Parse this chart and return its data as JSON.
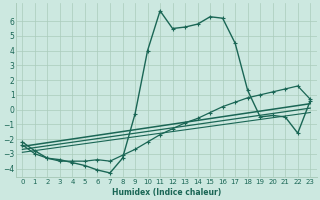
{
  "bg_color": "#cce8e0",
  "grid_color": "#aaccbb",
  "line_color": "#1a6655",
  "xlabel": "Humidex (Indice chaleur)",
  "xlim": [
    -0.5,
    23.5
  ],
  "ylim": [
    -4.6,
    7.2
  ],
  "yticks": [
    -4,
    -3,
    -2,
    -1,
    0,
    1,
    2,
    3,
    4,
    5,
    6
  ],
  "xticks": [
    0,
    1,
    2,
    3,
    4,
    5,
    6,
    7,
    8,
    9,
    10,
    11,
    12,
    13,
    14,
    15,
    16,
    17,
    18,
    19,
    20,
    21,
    22,
    23
  ],
  "series_marked": [
    {
      "x": [
        0,
        1,
        2,
        3,
        4,
        5,
        6,
        7,
        8,
        9,
        10,
        11,
        12,
        13,
        14,
        15,
        16,
        17,
        18,
        19,
        20,
        21,
        22,
        23
      ],
      "y": [
        -2.2,
        -2.8,
        -3.3,
        -3.4,
        -3.6,
        -3.8,
        -4.1,
        -4.3,
        -3.3,
        -0.3,
        4.0,
        6.7,
        5.5,
        5.6,
        5.8,
        6.3,
        6.2,
        4.5,
        1.3,
        -0.5,
        -0.4,
        -0.5,
        -1.6,
        0.6
      ],
      "linewidth": 1.0
    },
    {
      "x": [
        0,
        1,
        2,
        3,
        4,
        5,
        6,
        7,
        8,
        9,
        10,
        11,
        12,
        13,
        14,
        15,
        16,
        17,
        18,
        19,
        20,
        21,
        22,
        23
      ],
      "y": [
        -2.4,
        -3.0,
        -3.3,
        -3.5,
        -3.5,
        -3.5,
        -3.4,
        -3.5,
        -3.1,
        -2.7,
        -2.2,
        -1.7,
        -1.3,
        -0.9,
        -0.6,
        -0.2,
        0.2,
        0.5,
        0.8,
        1.0,
        1.2,
        1.4,
        1.6,
        0.7
      ],
      "linewidth": 0.9
    }
  ],
  "series_lines": [
    {
      "x": [
        0,
        23
      ],
      "y": [
        -2.5,
        0.4
      ],
      "linewidth": 1.1
    },
    {
      "x": [
        0,
        23
      ],
      "y": [
        -2.7,
        0.1
      ],
      "linewidth": 0.9
    },
    {
      "x": [
        0,
        23
      ],
      "y": [
        -2.9,
        -0.2
      ],
      "linewidth": 0.8
    }
  ]
}
